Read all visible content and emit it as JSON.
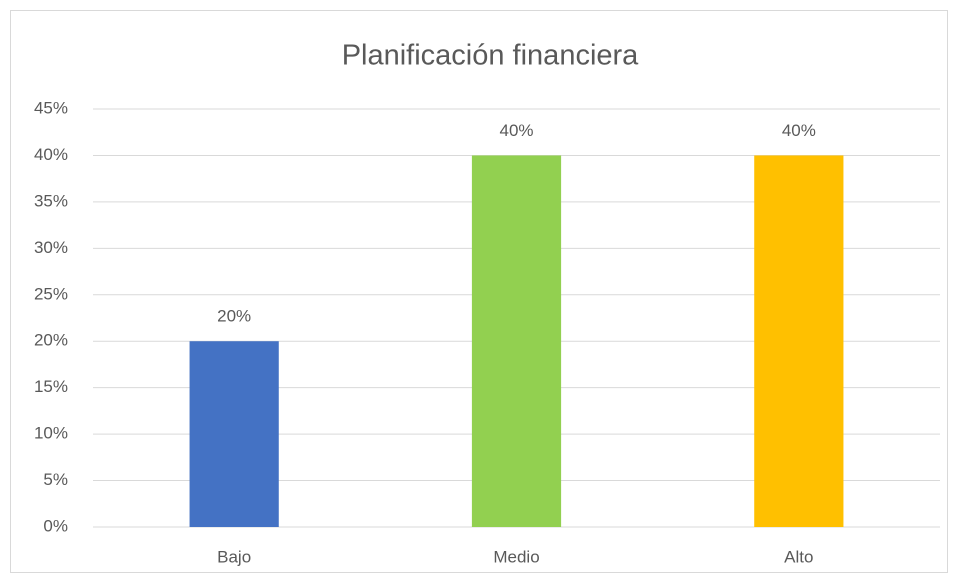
{
  "chart_data": {
    "type": "bar",
    "title": "Planificación financiera",
    "categories": [
      "Bajo",
      "Medio",
      "Alto"
    ],
    "values": [
      20,
      40,
      40
    ],
    "value_labels": [
      "20%",
      "40%",
      "40%"
    ],
    "colors": [
      "#4472c4",
      "#92d050",
      "#ffc000"
    ],
    "ylim": [
      0,
      45
    ],
    "yticks": [
      {
        "value": 0,
        "label": "0%"
      },
      {
        "value": 5,
        "label": "5%"
      },
      {
        "value": 10,
        "label": "10%"
      },
      {
        "value": 15,
        "label": "15%"
      },
      {
        "value": 20,
        "label": "20%"
      },
      {
        "value": 25,
        "label": "25%"
      },
      {
        "value": 30,
        "label": "30%"
      },
      {
        "value": 35,
        "label": "35%"
      },
      {
        "value": 40,
        "label": "40%"
      },
      {
        "value": 45,
        "label": "45%"
      }
    ],
    "grid": true
  }
}
